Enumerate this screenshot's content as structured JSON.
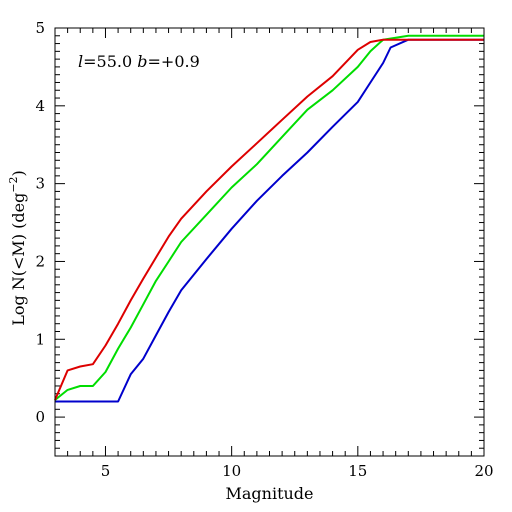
{
  "chart_data": {
    "type": "line",
    "title": "",
    "xlabel": "Magnitude",
    "ylabel_main": "Log N(<M) (deg",
    "ylabel_sup": "−2",
    "ylabel_close": ")",
    "annotation": {
      "l_symbol": "l",
      "l_value": "=55.0",
      "b_symbol": "b",
      "b_value": "=+0.9"
    },
    "xlim": [
      3,
      20
    ],
    "ylim": [
      -0.5,
      5
    ],
    "xticks": [
      5,
      10,
      15,
      20
    ],
    "yticks": [
      0,
      1,
      2,
      3,
      4,
      5
    ],
    "x_minor_step": 0.5,
    "y_minor_step": 0.1,
    "grid": false,
    "legend": "none",
    "series": [
      {
        "color": "#0000cc",
        "x": [
          3,
          5.5,
          6,
          6.5,
          7,
          7.5,
          8,
          9,
          10,
          11,
          12,
          13,
          14,
          15,
          15.5,
          16,
          16.3,
          17,
          18,
          19,
          20
        ],
        "y": [
          0.2,
          0.2,
          0.55,
          0.75,
          1.05,
          1.35,
          1.63,
          2.03,
          2.42,
          2.78,
          3.1,
          3.4,
          3.73,
          4.05,
          4.3,
          4.55,
          4.75,
          4.85,
          4.85,
          4.85,
          4.85
        ]
      },
      {
        "color": "#00dd00",
        "x": [
          3,
          3.5,
          4,
          4.5,
          5,
          5.5,
          6,
          6.5,
          7,
          7.5,
          8,
          9,
          10,
          11,
          12,
          13,
          14,
          15,
          15.5,
          16,
          17,
          18,
          19,
          20
        ],
        "y": [
          0.22,
          0.35,
          0.4,
          0.4,
          0.58,
          0.88,
          1.15,
          1.45,
          1.75,
          2.0,
          2.25,
          2.6,
          2.95,
          3.25,
          3.6,
          3.95,
          4.2,
          4.5,
          4.7,
          4.85,
          4.9,
          4.9,
          4.9,
          4.9
        ]
      },
      {
        "color": "#dd0000",
        "x": [
          3,
          3.5,
          4,
          4.5,
          5,
          5.5,
          6,
          6.5,
          7,
          7.5,
          8,
          9,
          10,
          11,
          12,
          13,
          14,
          15,
          15.5,
          16,
          17,
          18,
          19,
          20
        ],
        "y": [
          0.22,
          0.6,
          0.65,
          0.68,
          0.92,
          1.2,
          1.5,
          1.78,
          2.05,
          2.32,
          2.55,
          2.9,
          3.22,
          3.52,
          3.82,
          4.12,
          4.38,
          4.72,
          4.82,
          4.85,
          4.85,
          4.85,
          4.85,
          4.85
        ]
      }
    ]
  }
}
